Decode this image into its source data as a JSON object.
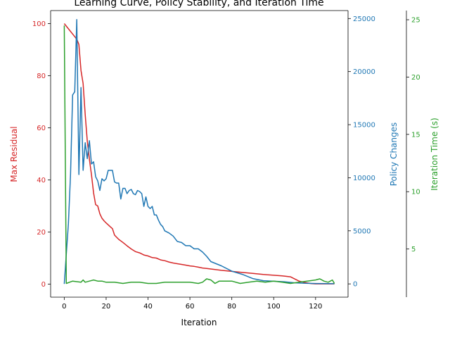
{
  "chart_data": {
    "type": "line",
    "title": "Learning Curve, Policy Stability, and Iteration Time",
    "xlabel": "Iteration",
    "xlim": [
      -6.5,
      135.5
    ],
    "xticks": [
      0,
      20,
      40,
      60,
      80,
      100,
      120
    ],
    "axes": [
      {
        "id": "residual",
        "label": "Max Residual",
        "color": "#d62728",
        "side": "left",
        "ylim": [
          -5,
          105
        ],
        "ticks": [
          0,
          20,
          40,
          60,
          80,
          100
        ]
      },
      {
        "id": "policy",
        "label": "Policy Changes",
        "color": "#1f77b4",
        "side": "right",
        "ylim": [
          -1250,
          25750
        ],
        "ticks": [
          0,
          5000,
          10000,
          15000,
          20000,
          25000
        ]
      },
      {
        "id": "time",
        "label": "Iteration Time (s)",
        "color": "#2ca02c",
        "side": "right-outer",
        "ylim": [
          0.8,
          25.8
        ],
        "ticks": [
          5,
          10,
          15,
          20,
          25
        ]
      }
    ],
    "series": [
      {
        "axis": "residual",
        "x": [
          0,
          2,
          4,
          6,
          7,
          8,
          9,
          10,
          11,
          12,
          13,
          14,
          15,
          16,
          17,
          18,
          19,
          20,
          22,
          23,
          24,
          25,
          26,
          28,
          30,
          32,
          34,
          36,
          38,
          40,
          42,
          44,
          46,
          48,
          50,
          52,
          55,
          58,
          60,
          62,
          64,
          66,
          68,
          70,
          75,
          80,
          85,
          90,
          95,
          100,
          104,
          108,
          110,
          112,
          115,
          118,
          120,
          125,
          129
        ],
        "values": [
          100,
          98,
          96,
          94,
          92,
          82,
          77,
          65,
          55,
          48,
          42,
          35,
          30.5,
          30,
          27,
          25.3,
          24.3,
          23.5,
          22,
          21.3,
          18.8,
          18,
          17.2,
          16,
          14.7,
          13.5,
          12.5,
          12,
          11.2,
          10.8,
          10.2,
          10,
          9.3,
          9,
          8.5,
          8.1,
          7.7,
          7.3,
          7,
          6.8,
          6.5,
          6.2,
          6,
          5.8,
          5.3,
          4.9,
          4.5,
          4.1,
          3.7,
          3.4,
          3.2,
          2.8,
          2,
          1.2,
          0.6,
          0.2,
          0.1,
          0.1,
          0.1
        ]
      },
      {
        "axis": "policy",
        "x": [
          0,
          2,
          3,
          4,
          5,
          6,
          7,
          8,
          9,
          10,
          11,
          12,
          13,
          14,
          15,
          16,
          17,
          18,
          19,
          20,
          21,
          22,
          23,
          24,
          25,
          26,
          27,
          28,
          29,
          30,
          31,
          32,
          33,
          34,
          35,
          36,
          37,
          38,
          39,
          40,
          41,
          42,
          43,
          44,
          45,
          46,
          47,
          48,
          49,
          50,
          52,
          54,
          56,
          58,
          60,
          62,
          64,
          66,
          68,
          70,
          75,
          80,
          85,
          90,
          95,
          100,
          105,
          110,
          115,
          120,
          125,
          129
        ],
        "values": [
          0,
          5700,
          10300,
          17800,
          18100,
          24900,
          10300,
          18500,
          10700,
          13300,
          11800,
          13500,
          11300,
          11500,
          10100,
          9700,
          8800,
          9900,
          9700,
          9900,
          10700,
          10700,
          10700,
          9600,
          9500,
          9500,
          8000,
          9000,
          9000,
          8500,
          8800,
          8900,
          8500,
          8400,
          8800,
          8700,
          8500,
          7300,
          8200,
          7300,
          7100,
          7300,
          6500,
          6500,
          6000,
          5600,
          5400,
          5000,
          4900,
          4800,
          4500,
          4000,
          3900,
          3600,
          3600,
          3300,
          3300,
          3000,
          2600,
          2100,
          1700,
          1200,
          900,
          500,
          300,
          250,
          200,
          100,
          60,
          40,
          30,
          20
        ]
      },
      {
        "axis": "time",
        "x": [
          0,
          1,
          4,
          8,
          9,
          10,
          12,
          14,
          16,
          18,
          20,
          24,
          28,
          32,
          36,
          40,
          44,
          48,
          52,
          56,
          60,
          64,
          66,
          68,
          70,
          72,
          74,
          76,
          80,
          84,
          88,
          92,
          96,
          100,
          104,
          108,
          112,
          116,
          120,
          122,
          124,
          126,
          128,
          129
        ],
        "values": [
          24.5,
          2,
          2.2,
          2.1,
          2.3,
          2.1,
          2.2,
          2.3,
          2.2,
          2.2,
          2.1,
          2.1,
          2,
          2.1,
          2.1,
          2,
          2,
          2.1,
          2.1,
          2.1,
          2.1,
          2,
          2.1,
          2.4,
          2.3,
          2,
          2.2,
          2.2,
          2.2,
          2,
          2.1,
          2.2,
          2.1,
          2.2,
          2.1,
          2,
          2.1,
          2.2,
          2.3,
          2.4,
          2.2,
          2.1,
          2.3,
          2
        ]
      }
    ]
  }
}
